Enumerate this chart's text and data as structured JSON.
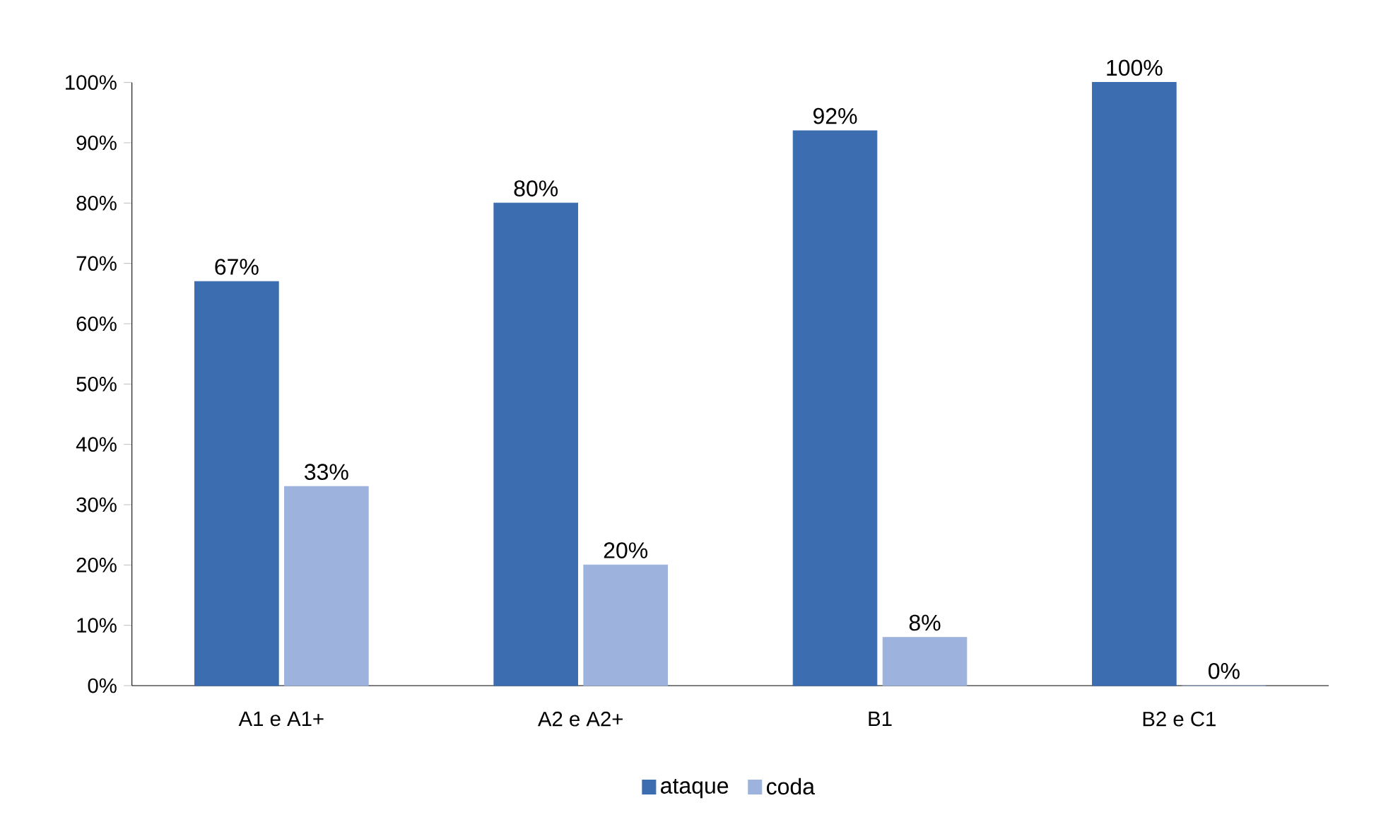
{
  "chart_data": {
    "type": "bar",
    "categories": [
      "A1 e A1+",
      "A2 e A2+",
      "B1",
      "B2 e C1"
    ],
    "series": [
      {
        "name": "ataque",
        "color": "#3b6db0",
        "values": [
          67,
          80,
          92,
          100
        ],
        "value_labels": [
          "67%",
          "80%",
          "92%",
          "100%"
        ]
      },
      {
        "name": "coda",
        "color": "#9db3de",
        "values": [
          33,
          20,
          8,
          0
        ],
        "value_labels": [
          "33%",
          "20%",
          "8%",
          "0%"
        ]
      }
    ],
    "ylim": [
      0,
      100
    ],
    "yticks": [
      {
        "value": 0,
        "label": "0%"
      },
      {
        "value": 10,
        "label": "10%"
      },
      {
        "value": 20,
        "label": "20%"
      },
      {
        "value": 30,
        "label": "30%"
      },
      {
        "value": 40,
        "label": "40%"
      },
      {
        "value": 50,
        "label": "50%"
      },
      {
        "value": 60,
        "label": "60%"
      },
      {
        "value": 70,
        "label": "70%"
      },
      {
        "value": 80,
        "label": "80%"
      },
      {
        "value": 90,
        "label": "90%"
      },
      {
        "value": 100,
        "label": "100%"
      }
    ],
    "grid": false,
    "legend": "bottom"
  }
}
